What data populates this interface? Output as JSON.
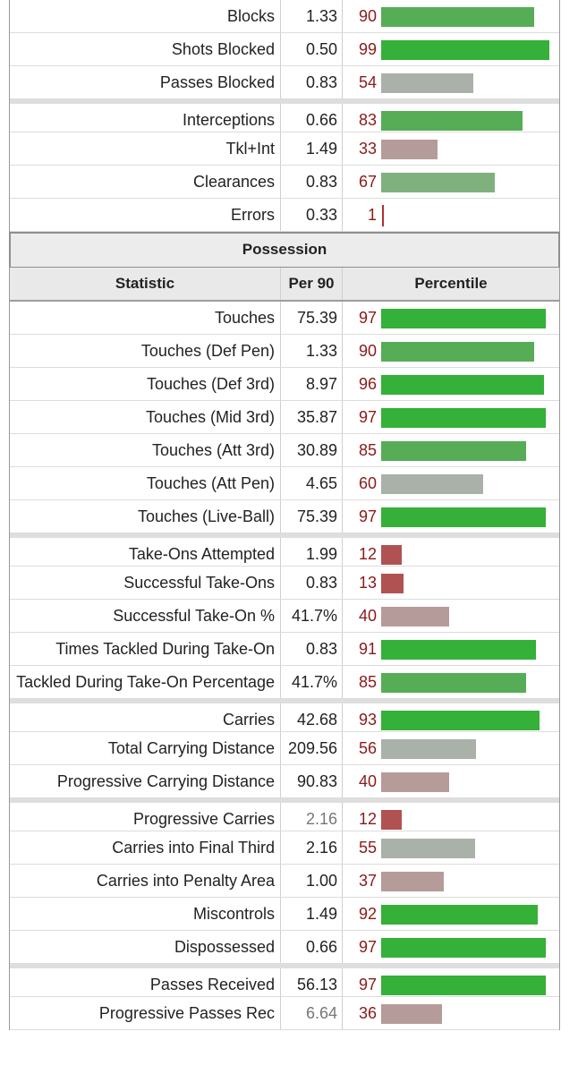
{
  "colors": {
    "top": "#35b038",
    "high": "#56ad56",
    "mid_high": "#7fb17f",
    "mid": "#a9b1a9",
    "mid_low": "#b69b9b",
    "low": "#b08787",
    "bottom": "#b05252",
    "tick": "#b03030"
  },
  "top_rows": [
    {
      "stat": "Blocks",
      "per90": "1.33",
      "pct": "90"
    },
    {
      "stat": "Shots Blocked",
      "per90": "0.50",
      "pct": "99"
    },
    {
      "stat": "Passes Blocked",
      "per90": "0.83",
      "pct": "54"
    },
    {
      "stat": "Interceptions",
      "per90": "0.66",
      "pct": "83",
      "sep": true
    },
    {
      "stat": "Tkl+Int",
      "per90": "1.49",
      "pct": "33"
    },
    {
      "stat": "Clearances",
      "per90": "0.83",
      "pct": "67"
    },
    {
      "stat": "Errors",
      "per90": "0.33",
      "pct": "1"
    }
  ],
  "section": {
    "title": "Possession",
    "col_stat": "Statistic",
    "col_per90": "Per 90",
    "col_pct": "Percentile"
  },
  "rows": [
    {
      "stat": "Touches",
      "per90": "75.39",
      "pct": "97"
    },
    {
      "stat": "Touches (Def Pen)",
      "per90": "1.33",
      "pct": "90"
    },
    {
      "stat": "Touches (Def 3rd)",
      "per90": "8.97",
      "pct": "96"
    },
    {
      "stat": "Touches (Mid 3rd)",
      "per90": "35.87",
      "pct": "97"
    },
    {
      "stat": "Touches (Att 3rd)",
      "per90": "30.89",
      "pct": "85"
    },
    {
      "stat": "Touches (Att Pen)",
      "per90": "4.65",
      "pct": "60"
    },
    {
      "stat": "Touches (Live-Ball)",
      "per90": "75.39",
      "pct": "97"
    },
    {
      "stat": "Take-Ons Attempted",
      "per90": "1.99",
      "pct": "12",
      "sep": true
    },
    {
      "stat": "Successful Take-Ons",
      "per90": "0.83",
      "pct": "13"
    },
    {
      "stat": "Successful Take-On %",
      "per90": "41.7%",
      "pct": "40"
    },
    {
      "stat": "Times Tackled During Take-On",
      "per90": "0.83",
      "pct": "91"
    },
    {
      "stat": "Tackled During Take-On Percentage",
      "per90": "41.7%",
      "pct": "85"
    },
    {
      "stat": "Carries",
      "per90": "42.68",
      "pct": "93",
      "sep": true
    },
    {
      "stat": "Total Carrying Distance",
      "per90": "209.56",
      "pct": "56"
    },
    {
      "stat": "Progressive Carrying Distance",
      "per90": "90.83",
      "pct": "40"
    },
    {
      "stat": "Progressive Carries",
      "per90": "2.16",
      "pct": "12",
      "sep": true,
      "muted": true
    },
    {
      "stat": "Carries into Final Third",
      "per90": "2.16",
      "pct": "55"
    },
    {
      "stat": "Carries into Penalty Area",
      "per90": "1.00",
      "pct": "37"
    },
    {
      "stat": "Miscontrols",
      "per90": "1.49",
      "pct": "92"
    },
    {
      "stat": "Dispossessed",
      "per90": "0.66",
      "pct": "97"
    },
    {
      "stat": "Passes Received",
      "per90": "56.13",
      "pct": "97",
      "sep": true
    },
    {
      "stat": "Progressive Passes Rec",
      "per90": "6.64",
      "pct": "36",
      "muted": true
    }
  ]
}
